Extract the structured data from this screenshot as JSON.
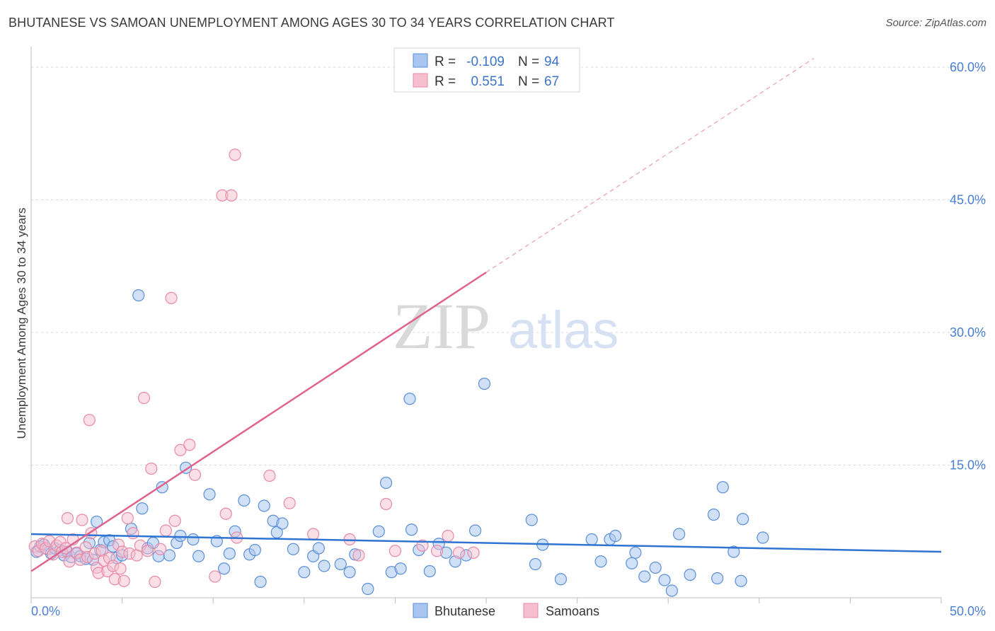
{
  "title": "BHUTANESE VS SAMOAN UNEMPLOYMENT AMONG AGES 30 TO 34 YEARS CORRELATION CHART",
  "source": "Source: ZipAtlas.com",
  "watermark": {
    "zip": "ZIP",
    "atlas": "atlas"
  },
  "legend_top": {
    "rows": [
      {
        "r_label": "R =",
        "r_value": "-0.109",
        "n_label": "N =",
        "n_value": "94"
      },
      {
        "r_label": "R =",
        "r_value": "0.551",
        "n_label": "N =",
        "n_value": "67"
      }
    ]
  },
  "legend_bottom": [
    {
      "label": "Bhutanese"
    },
    {
      "label": "Samoans"
    }
  ],
  "colors": {
    "blue_fill": "#a9c6f0",
    "blue_stroke": "#5b8fd8",
    "blue_line": "#2f74d0",
    "pink_fill": "#f6bfd0",
    "pink_stroke": "#e889a8",
    "pink_line": "#e0628f",
    "grid": "#d8d8d8",
    "tick_text": "#4a7fd4"
  },
  "chart_data": {
    "type": "scatter",
    "title": "BHUTANESE VS SAMOAN UNEMPLOYMENT AMONG AGES 30 TO 34 YEARS CORRELATION CHART",
    "xlabel": "",
    "ylabel": "Unemployment Among Ages 30 to 34 years",
    "xlim": [
      0,
      50
    ],
    "ylim": [
      0,
      62
    ],
    "x_tick_labels": [
      "0.0%",
      "50.0%"
    ],
    "y_ticks": [
      15,
      30,
      45,
      60
    ],
    "y_tick_labels": [
      "15.0%",
      "30.0%",
      "45.0%",
      "60.0%"
    ],
    "grid": true,
    "legend_position": "top-center",
    "series": [
      {
        "name": "Bhutanese",
        "R": -0.109,
        "N": 94,
        "trend": {
          "x": [
            0,
            50
          ],
          "y": [
            7.2,
            5.2
          ]
        },
        "points": [
          [
            0.3,
            5.2
          ],
          [
            0.5,
            5.8
          ],
          [
            0.7,
            6.0
          ],
          [
            0.9,
            5.5
          ],
          [
            1.1,
            5.0
          ],
          [
            1.3,
            5.6
          ],
          [
            1.6,
            5.4
          ],
          [
            1.8,
            4.8
          ],
          [
            2.0,
            5.2
          ],
          [
            2.2,
            4.6
          ],
          [
            2.5,
            5.0
          ],
          [
            2.7,
            4.7
          ],
          [
            3.0,
            4.4
          ],
          [
            3.2,
            6.2
          ],
          [
            3.4,
            4.3
          ],
          [
            3.6,
            8.6
          ],
          [
            3.8,
            5.4
          ],
          [
            4.0,
            6.3
          ],
          [
            4.3,
            6.5
          ],
          [
            4.5,
            5.8
          ],
          [
            4.7,
            4.5
          ],
          [
            5.0,
            4.8
          ],
          [
            5.5,
            7.8
          ],
          [
            5.9,
            34.2
          ],
          [
            6.1,
            10.1
          ],
          [
            6.4,
            5.6
          ],
          [
            6.7,
            6.2
          ],
          [
            7.0,
            4.7
          ],
          [
            7.2,
            12.5
          ],
          [
            7.6,
            4.8
          ],
          [
            8.0,
            6.2
          ],
          [
            8.2,
            7.0
          ],
          [
            8.5,
            14.7
          ],
          [
            8.9,
            6.6
          ],
          [
            9.2,
            4.7
          ],
          [
            9.8,
            11.7
          ],
          [
            10.2,
            6.4
          ],
          [
            10.6,
            3.3
          ],
          [
            10.9,
            5.0
          ],
          [
            11.2,
            7.5
          ],
          [
            11.7,
            11.0
          ],
          [
            12.0,
            4.9
          ],
          [
            12.3,
            5.4
          ],
          [
            12.6,
            1.8
          ],
          [
            12.8,
            10.4
          ],
          [
            13.3,
            8.7
          ],
          [
            13.5,
            7.4
          ],
          [
            13.8,
            8.4
          ],
          [
            14.4,
            5.5
          ],
          [
            15.0,
            2.9
          ],
          [
            15.5,
            4.7
          ],
          [
            15.8,
            5.6
          ],
          [
            16.1,
            3.6
          ],
          [
            17.0,
            3.8
          ],
          [
            17.5,
            2.9
          ],
          [
            17.8,
            4.9
          ],
          [
            18.5,
            1.0
          ],
          [
            19.1,
            7.5
          ],
          [
            19.5,
            13.0
          ],
          [
            19.8,
            2.9
          ],
          [
            20.3,
            3.3
          ],
          [
            20.8,
            22.5
          ],
          [
            20.9,
            7.7
          ],
          [
            21.3,
            5.4
          ],
          [
            21.9,
            3.0
          ],
          [
            22.4,
            6.1
          ],
          [
            22.8,
            5.1
          ],
          [
            23.3,
            4.1
          ],
          [
            23.9,
            4.8
          ],
          [
            24.4,
            7.6
          ],
          [
            24.9,
            24.2
          ],
          [
            27.5,
            8.8
          ],
          [
            27.7,
            3.8
          ],
          [
            28.1,
            6.0
          ],
          [
            29.1,
            2.1
          ],
          [
            30.8,
            6.6
          ],
          [
            31.3,
            4.1
          ],
          [
            31.8,
            6.6
          ],
          [
            32.1,
            7.0
          ],
          [
            33.0,
            3.9
          ],
          [
            33.2,
            5.1
          ],
          [
            33.7,
            2.4
          ],
          [
            34.3,
            3.4
          ],
          [
            34.8,
            2.0
          ],
          [
            35.2,
            0.8
          ],
          [
            35.6,
            7.2
          ],
          [
            36.2,
            2.6
          ],
          [
            37.5,
            9.4
          ],
          [
            37.7,
            2.2
          ],
          [
            38.0,
            12.5
          ],
          [
            38.6,
            5.2
          ],
          [
            39.0,
            1.9
          ],
          [
            39.1,
            8.9
          ],
          [
            40.2,
            6.8
          ]
        ]
      },
      {
        "name": "Samoans",
        "R": 0.551,
        "N": 67,
        "trend": {
          "x": [
            0,
            25
          ],
          "y": [
            3.0,
            36.8
          ]
        },
        "trend_dashed": {
          "x": [
            25,
            43
          ],
          "y": [
            36.8,
            61.0
          ]
        },
        "points": [
          [
            0.2,
            5.8
          ],
          [
            0.4,
            5.3
          ],
          [
            0.6,
            6.1
          ],
          [
            0.8,
            5.6
          ],
          [
            1.0,
            6.4
          ],
          [
            1.2,
            4.9
          ],
          [
            1.4,
            5.9
          ],
          [
            1.6,
            6.3
          ],
          [
            1.7,
            5.2
          ],
          [
            1.9,
            5.6
          ],
          [
            2.0,
            9.0
          ],
          [
            2.1,
            4.1
          ],
          [
            2.3,
            6.6
          ],
          [
            2.5,
            5.1
          ],
          [
            2.7,
            4.3
          ],
          [
            2.8,
            8.8
          ],
          [
            3.0,
            5.7
          ],
          [
            3.1,
            4.6
          ],
          [
            3.2,
            20.1
          ],
          [
            3.3,
            7.3
          ],
          [
            3.5,
            5.0
          ],
          [
            3.6,
            3.4
          ],
          [
            3.7,
            2.8
          ],
          [
            3.9,
            5.3
          ],
          [
            4.0,
            4.2
          ],
          [
            4.2,
            3.0
          ],
          [
            4.3,
            4.5
          ],
          [
            4.5,
            3.6
          ],
          [
            4.6,
            2.1
          ],
          [
            4.8,
            6.0
          ],
          [
            4.9,
            3.3
          ],
          [
            5.0,
            5.2
          ],
          [
            5.1,
            1.9
          ],
          [
            5.3,
            9.0
          ],
          [
            5.4,
            5.0
          ],
          [
            5.6,
            7.3
          ],
          [
            5.8,
            4.8
          ],
          [
            6.0,
            5.9
          ],
          [
            6.2,
            22.6
          ],
          [
            6.4,
            5.3
          ],
          [
            6.6,
            14.6
          ],
          [
            6.8,
            1.8
          ],
          [
            7.1,
            5.5
          ],
          [
            7.4,
            7.6
          ],
          [
            7.7,
            33.9
          ],
          [
            7.9,
            8.7
          ],
          [
            8.2,
            16.7
          ],
          [
            8.7,
            17.3
          ],
          [
            9.0,
            13.9
          ],
          [
            10.1,
            2.4
          ],
          [
            10.5,
            45.5
          ],
          [
            10.7,
            9.5
          ],
          [
            11.0,
            45.5
          ],
          [
            11.2,
            50.1
          ],
          [
            11.3,
            6.8
          ],
          [
            13.1,
            13.8
          ],
          [
            14.2,
            10.7
          ],
          [
            15.5,
            7.2
          ],
          [
            17.5,
            6.6
          ],
          [
            18.0,
            4.8
          ],
          [
            19.5,
            10.6
          ],
          [
            20.0,
            5.3
          ],
          [
            21.5,
            5.9
          ],
          [
            22.3,
            5.3
          ],
          [
            22.9,
            7.0
          ],
          [
            23.5,
            5.1
          ],
          [
            24.3,
            5.1
          ]
        ]
      }
    ]
  }
}
